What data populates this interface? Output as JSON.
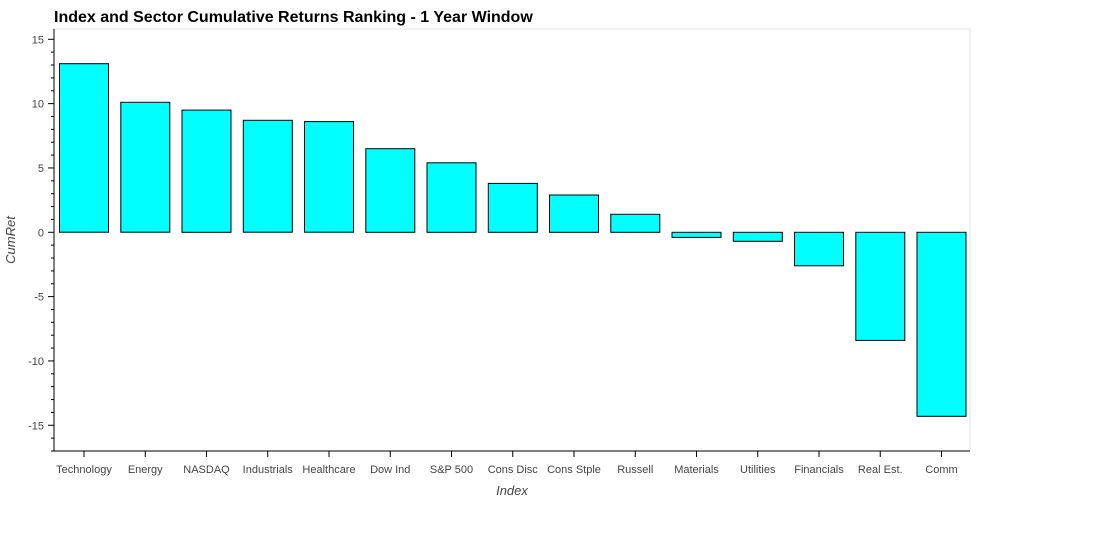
{
  "chart_data": {
    "type": "bar",
    "title": "Index and Sector Cumulative Returns Ranking - 1 Year Window",
    "xlabel": "Index",
    "ylabel": "CumRet",
    "categories": [
      "Technology",
      "Energy",
      "NASDAQ",
      "Industrials",
      "Healthcare",
      "Dow Ind",
      "S&P 500",
      "Cons Disc",
      "Cons Stple",
      "Russell",
      "Materials",
      "Utilities",
      "Financials",
      "Real Est.",
      "Comm"
    ],
    "values": [
      13.1,
      10.1,
      9.5,
      8.7,
      8.6,
      6.5,
      5.4,
      3.8,
      2.9,
      1.4,
      -0.4,
      -0.7,
      -2.6,
      -8.4,
      -14.3
    ],
    "ylim": [
      -17,
      15.8
    ],
    "yticks": [
      -15,
      -10,
      -5,
      0,
      5,
      10,
      15
    ],
    "bar_color": "#00ffff",
    "bar_edge_color": "#000000",
    "grid": false,
    "legend": "none"
  }
}
